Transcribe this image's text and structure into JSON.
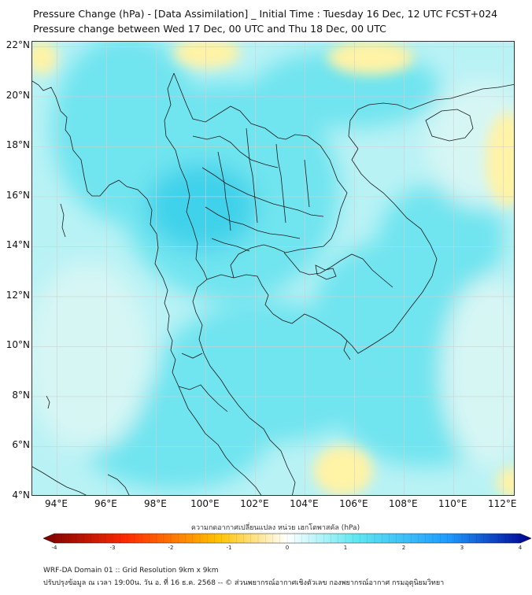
{
  "title_line1": "Pressure Change (hPa) - [Data Assimilation] _ Initial Time : Tuesday 16 Dec, 12 UTC FCST+024",
  "title_line2": "Pressure change between Wed 17 Dec, 00 UTC and Thu 18 Dec, 00 UTC",
  "lat_labels": [
    "22°N",
    "20°N",
    "18°N",
    "16°N",
    "14°N",
    "12°N",
    "10°N",
    "8°N",
    "6°N",
    "4°N"
  ],
  "lon_labels": [
    "94°E",
    "96°E",
    "98°E",
    "100°E",
    "102°E",
    "104°E",
    "106°E",
    "108°E",
    "110°E",
    "112°E"
  ],
  "colorbar": {
    "title": "ความกดอากาศเปลี่ยนแปลง หน่วย เฮกโตพาสคัล (hPa)",
    "ticks": [
      "-4",
      "-3",
      "-2",
      "-1",
      "0",
      "1",
      "2",
      "3",
      "4"
    ],
    "min": -4,
    "max": 4,
    "colors": {
      "neg_strong": "#7a0000",
      "neg_mid": "#ff2a00",
      "neg_weak": "#ffc300",
      "zero": "#ffffff",
      "pos_weak": "#5fe8f0",
      "pos_mid": "#1e9bff",
      "pos_strong": "#000090"
    }
  },
  "footer_line1": "WRF-DA Domain 01 :: Grid Resolution 9km x 9km",
  "footer_line2": "ปรับปรุงข้อมูล ณ เวลา 19:00น. วัน อ. ที่ 16 ธ.ค. 2568 -- © ส่วนพยากรณ์อากาศเชิงตัวเลข กองพยากรณ์อากาศ กรมอุตุนิยมวิทยา",
  "map_colors": {
    "base": "#b9f2f5",
    "cyan": "#6fe4ef",
    "cyan_deep": "#3fd2ea",
    "pale": "#d6f6f4",
    "yellow": "#fff3a6",
    "coast": "#1a1a1a",
    "grid": "#d0d0d0"
  }
}
